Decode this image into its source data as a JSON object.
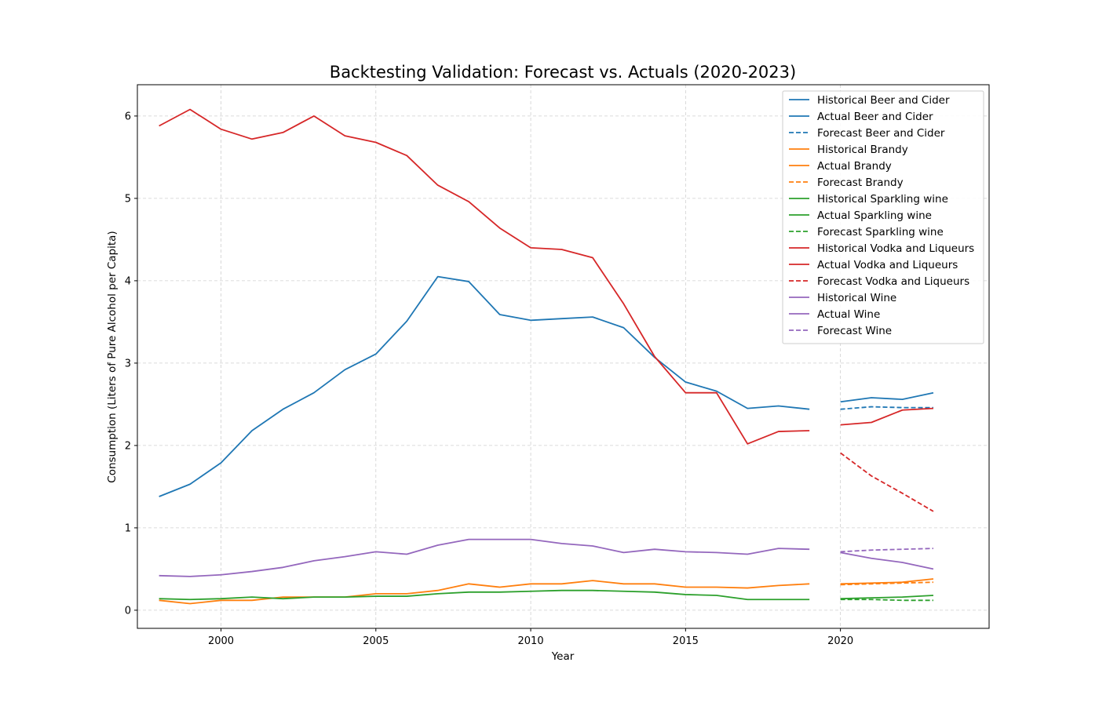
{
  "chart_data": {
    "type": "line",
    "title": "Backtesting Validation: Forecast vs. Actuals (2020-2023)",
    "xlabel": "Year",
    "ylabel": "Consumption (Liters of Pure Alcohol per Capita)",
    "xlim": [
      1997.3,
      2024.8
    ],
    "ylim": [
      -0.22,
      6.38
    ],
    "xticks": [
      2000,
      2005,
      2010,
      2015,
      2020
    ],
    "yticks": [
      0,
      1,
      2,
      3,
      4,
      5,
      6
    ],
    "grid": true,
    "legend_position": "top-right",
    "historical_x": [
      1998,
      1999,
      2000,
      2001,
      2002,
      2003,
      2004,
      2005,
      2006,
      2007,
      2008,
      2009,
      2010,
      2011,
      2012,
      2013,
      2014,
      2015,
      2016,
      2017,
      2018,
      2019
    ],
    "test_x": [
      2020,
      2021,
      2022,
      2023
    ],
    "series": [
      {
        "name": "Beer and Cider",
        "color": "#1f77b4",
        "historical_label": "Historical Beer and Cider",
        "actual_label": "Actual Beer and Cider",
        "forecast_label": "Forecast Beer and Cider",
        "historical": [
          1.38,
          1.53,
          1.79,
          2.18,
          2.44,
          2.64,
          2.92,
          3.11,
          3.51,
          4.05,
          3.99,
          3.59,
          3.52,
          3.54,
          3.56,
          3.43,
          3.07,
          2.77,
          2.66,
          2.45,
          2.48,
          2.44
        ],
        "actual": [
          2.53,
          2.58,
          2.56,
          2.64
        ],
        "forecast": [
          2.44,
          2.47,
          2.46,
          2.46
        ]
      },
      {
        "name": "Brandy",
        "color": "#ff7f0e",
        "historical_label": "Historical Brandy",
        "actual_label": "Actual Brandy",
        "forecast_label": "Forecast Brandy",
        "historical": [
          0.12,
          0.08,
          0.12,
          0.12,
          0.16,
          0.16,
          0.16,
          0.2,
          0.2,
          0.24,
          0.32,
          0.28,
          0.32,
          0.32,
          0.36,
          0.32,
          0.32,
          0.28,
          0.28,
          0.27,
          0.3,
          0.32
        ],
        "actual": [
          0.32,
          0.33,
          0.34,
          0.38
        ],
        "forecast": [
          0.31,
          0.32,
          0.33,
          0.34
        ]
      },
      {
        "name": "Sparkling wine",
        "color": "#2ca02c",
        "historical_label": "Historical Sparkling wine",
        "actual_label": "Actual Sparkling wine",
        "forecast_label": "Forecast Sparkling wine",
        "historical": [
          0.14,
          0.13,
          0.14,
          0.16,
          0.14,
          0.16,
          0.16,
          0.17,
          0.17,
          0.2,
          0.22,
          0.22,
          0.23,
          0.24,
          0.24,
          0.23,
          0.22,
          0.19,
          0.18,
          0.13,
          0.13,
          0.13
        ],
        "actual": [
          0.14,
          0.15,
          0.16,
          0.18
        ],
        "forecast": [
          0.13,
          0.13,
          0.12,
          0.12
        ]
      },
      {
        "name": "Vodka and Liqueurs",
        "color": "#d62728",
        "historical_label": "Historical Vodka and Liqueurs",
        "actual_label": "Actual Vodka and Liqueurs",
        "forecast_label": "Forecast Vodka and Liqueurs",
        "historical": [
          5.88,
          6.08,
          5.84,
          5.72,
          5.8,
          6.0,
          5.76,
          5.68,
          5.52,
          5.16,
          4.96,
          4.64,
          4.4,
          4.38,
          4.28,
          3.72,
          3.08,
          2.64,
          2.64,
          2.02,
          2.17,
          2.18
        ],
        "actual": [
          2.25,
          2.28,
          2.43,
          2.45
        ],
        "forecast": [
          1.91,
          1.63,
          1.42,
          1.2
        ]
      },
      {
        "name": "Wine",
        "color": "#9467bd",
        "historical_label": "Historical Wine",
        "actual_label": "Actual Wine",
        "forecast_label": "Forecast Wine",
        "historical": [
          0.42,
          0.41,
          0.43,
          0.47,
          0.52,
          0.6,
          0.65,
          0.71,
          0.68,
          0.79,
          0.86,
          0.86,
          0.86,
          0.81,
          0.78,
          0.7,
          0.74,
          0.71,
          0.7,
          0.68,
          0.75,
          0.74
        ],
        "actual": [
          0.7,
          0.63,
          0.58,
          0.5
        ],
        "forecast": [
          0.71,
          0.73,
          0.74,
          0.75
        ]
      }
    ]
  }
}
